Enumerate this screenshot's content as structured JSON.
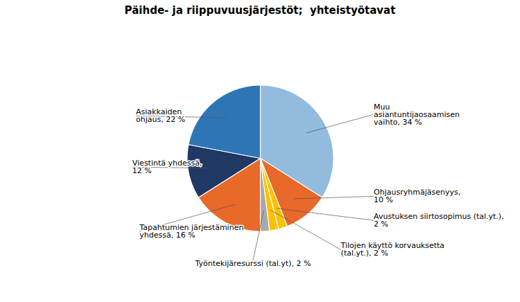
{
  "chart_data": {
    "type": "pie",
    "title": "Päihde- ja riippuvuusjärjestöt;  yhteistyötavat",
    "categories": [
      "Muu\nasiantuntijaosaamisen\nvaihto, 34 %",
      "Ohjausryhmäjäsenyys,\n10 %",
      "Avustuksen siirtosopimus (tal.yt.),\n2 %",
      "Tilojen käyttö korvauksetta\n(tal.yt.), 2 %",
      "Työntekijäresurssi (tal.yt), 2 %",
      "Tapahtumien järjestäminen\nyhdessä, 16 %",
      "Viestintä yhdessä,\n12 %",
      "Asiakkaiden\nohjaus, 22 %"
    ],
    "values": [
      34,
      10,
      2,
      2,
      2,
      16,
      12,
      22
    ],
    "colors": [
      "#92BBDD",
      "#E8692A",
      "#FFC000",
      "#FFC000",
      "#A9A9A9",
      "#E8692A",
      "#1F3864",
      "#2E75B6"
    ]
  }
}
